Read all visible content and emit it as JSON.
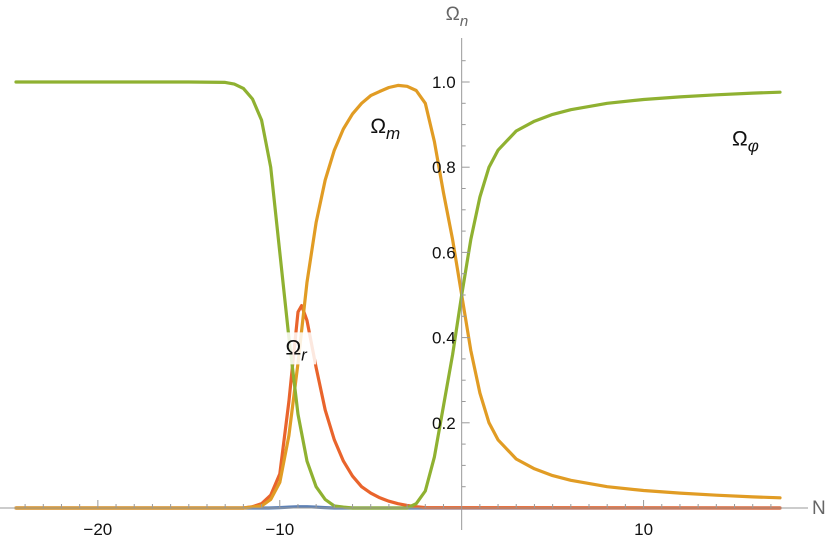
{
  "chart_data": {
    "type": "line",
    "title": "",
    "xlabel": "N",
    "ylabel": "Ω",
    "ylabel_sub": "n",
    "xlim": [
      -24.5,
      17.5
    ],
    "ylim": [
      0,
      1.05
    ],
    "x_ticks": [
      -20,
      -10,
      10
    ],
    "x_tick_labels": [
      "−20",
      "−10",
      "10"
    ],
    "y_ticks": [
      0.2,
      0.4,
      0.6,
      0.8,
      1.0
    ],
    "y_tick_labels": [
      "0.2",
      "0.4",
      "0.6",
      "0.8",
      "1.0"
    ],
    "grid": false,
    "legend": "none",
    "series": [
      {
        "color": "#5e81b5",
        "x": [
          -24.5,
          -10.6,
          -10,
          -9.5,
          -9,
          -8.5,
          -8,
          -7.5,
          -7,
          17.5
        ],
        "y": [
          0,
          0,
          0.001,
          0.002,
          0.003,
          0.003,
          0.002,
          0.001,
          0,
          0
        ]
      },
      {
        "name": "Ω",
        "sub": "r",
        "color": "#e9642c",
        "x": [
          -24.5,
          -12,
          -11.5,
          -11,
          -10.5,
          -10,
          -9.5,
          -9,
          -8.8,
          -8.5,
          -8,
          -7.5,
          -7,
          -6.5,
          -6,
          -5.5,
          -5,
          -4.5,
          -4,
          -3.5,
          -3,
          -2.5,
          -2,
          17.5
        ],
        "y": [
          0,
          0,
          0.003,
          0.01,
          0.03,
          0.08,
          0.25,
          0.46,
          0.475,
          0.44,
          0.33,
          0.23,
          0.16,
          0.11,
          0.075,
          0.05,
          0.035,
          0.024,
          0.016,
          0.01,
          0.006,
          0.003,
          0.001,
          0
        ]
      },
      {
        "name": "Ω",
        "sub": "m",
        "color": "#e19c24",
        "x": [
          -24.5,
          -12,
          -11,
          -10.5,
          -10,
          -9.5,
          -9,
          -8.5,
          -8,
          -7.5,
          -7,
          -6.5,
          -6,
          -5.5,
          -5,
          -4.5,
          -4,
          -3.5,
          -3,
          -2.5,
          -2,
          -1.5,
          -1,
          -0.5,
          0,
          0.5,
          1,
          1.5,
          2,
          3,
          4,
          5,
          6,
          8,
          10,
          12,
          14,
          16,
          17.5
        ],
        "y": [
          0,
          0,
          0.005,
          0.02,
          0.06,
          0.17,
          0.34,
          0.53,
          0.67,
          0.77,
          0.84,
          0.89,
          0.925,
          0.95,
          0.968,
          0.978,
          0.987,
          0.992,
          0.99,
          0.98,
          0.95,
          0.86,
          0.74,
          0.63,
          0.5,
          0.37,
          0.27,
          0.2,
          0.16,
          0.115,
          0.092,
          0.076,
          0.065,
          0.05,
          0.041,
          0.035,
          0.03,
          0.026,
          0.024
        ]
      },
      {
        "name": "Ω",
        "sub": "φ",
        "color": "#8fb131",
        "x": [
          -24.5,
          -15,
          -13,
          -12.5,
          -12,
          -11.5,
          -11,
          -10.5,
          -10,
          -9.5,
          -9,
          -8.5,
          -8,
          -7.5,
          -7,
          -6.5,
          -6,
          -5,
          -4,
          -3,
          -2.5,
          -2,
          -1.5,
          -1,
          -0.5,
          0,
          0.5,
          1,
          1.5,
          2,
          3,
          4,
          5,
          6,
          8,
          10,
          12,
          14,
          16,
          17.5
        ],
        "y": [
          1,
          1,
          0.999,
          0.995,
          0.985,
          0.96,
          0.91,
          0.8,
          0.6,
          0.4,
          0.22,
          0.11,
          0.05,
          0.02,
          0.005,
          0.002,
          0,
          0,
          0,
          0,
          0.01,
          0.04,
          0.12,
          0.24,
          0.36,
          0.5,
          0.63,
          0.73,
          0.8,
          0.84,
          0.885,
          0.908,
          0.924,
          0.935,
          0.95,
          0.959,
          0.965,
          0.97,
          0.974,
          0.976
        ]
      }
    ],
    "annotations": [
      {
        "text": "Ω",
        "sub": "m",
        "x": -4.2,
        "y": 0.89
      },
      {
        "text": "Ω",
        "sub": "φ",
        "x": 15.6,
        "y": 0.86
      },
      {
        "text": "Ω",
        "sub": "r",
        "x": -9.1,
        "y": 0.37
      }
    ]
  }
}
